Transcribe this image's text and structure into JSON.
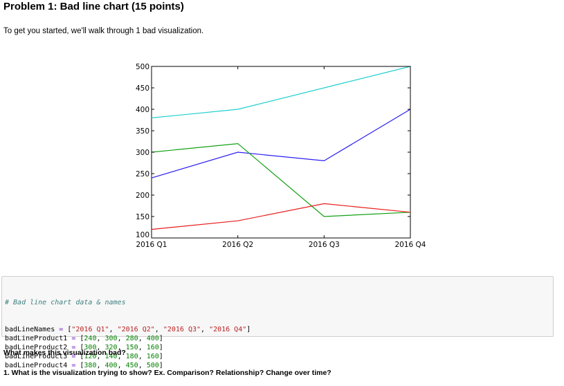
{
  "heading": "Problem 1: Bad line chart (15 points)",
  "intro": "To get you started, we'll walk through 1 bad visualization.",
  "chart_data": {
    "type": "line",
    "categories": [
      "2016 Q1",
      "2016 Q2",
      "2016 Q3",
      "2016 Q4"
    ],
    "ylim": [
      100,
      500
    ],
    "y_ticks": [
      "100",
      "150",
      "200",
      "250",
      "300",
      "350",
      "400",
      "450",
      "500"
    ],
    "grid": false,
    "series": [
      {
        "values": [
          240,
          300,
          280,
          400
        ],
        "color": "#2b1df0"
      },
      {
        "values": [
          300,
          320,
          150,
          160
        ],
        "color": "#12a012"
      },
      {
        "values": [
          120,
          140,
          180,
          160
        ],
        "color": "#e81c1c"
      },
      {
        "values": [
          380,
          400,
          450,
          500
        ],
        "color": "#1fcfcf"
      }
    ]
  },
  "code": {
    "comment": "# Bad line chart data & names",
    "lines": [
      {
        "var": "badLineNames",
        "op": "=",
        "open": "[",
        "items": [
          "\"2016 Q1\"",
          "\"2016 Q2\"",
          "\"2016 Q3\"",
          "\"2016 Q4\""
        ],
        "kind": "str"
      },
      {
        "var": "badLineProduct1",
        "op": "=",
        "open": "[",
        "items": [
          "240",
          "300",
          "280",
          "400"
        ],
        "kind": "num"
      },
      {
        "var": "badLineProduct2",
        "op": "=",
        "open": "[",
        "items": [
          "300",
          "320",
          "150",
          "160"
        ],
        "kind": "num"
      },
      {
        "var": "badLineProduct3",
        "op": "=",
        "open": "[",
        "items": [
          "120",
          "140",
          "180",
          "160"
        ],
        "kind": "num"
      },
      {
        "var": "badLineProduct4",
        "op": "=",
        "open": "[",
        "items": [
          "380",
          "400",
          "450",
          "500"
        ],
        "kind": "num"
      }
    ]
  },
  "question_heading": "What makes this visualization bad?",
  "question_1": "1. What is the visualization trying to show? Ex. Comparison? Relationship? Change over time?"
}
